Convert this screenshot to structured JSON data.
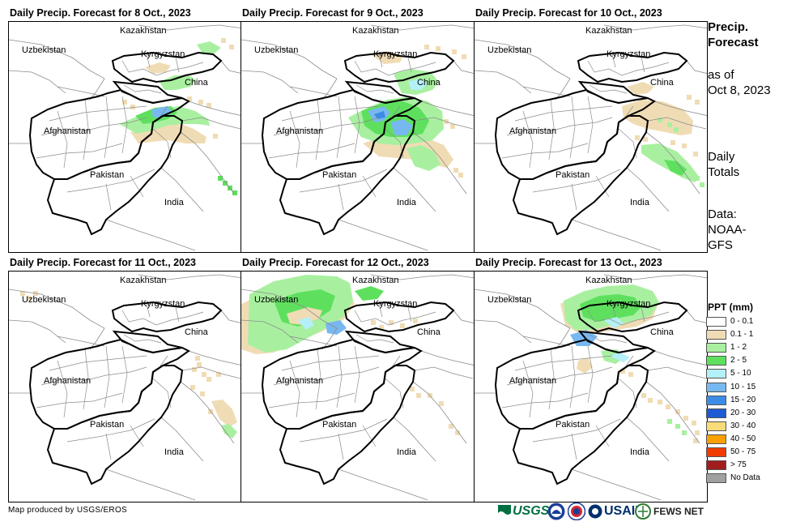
{
  "panels": [
    {
      "title": "Daily Precip. Forecast for 8 Oct., 2023"
    },
    {
      "title": "Daily Precip. Forecast for 9 Oct., 2023"
    },
    {
      "title": "Daily Precip. Forecast for 10 Oct., 2023"
    },
    {
      "title": "Daily Precip. Forecast for 11 Oct., 2023"
    },
    {
      "title": "Daily Precip. Forecast for 12 Oct., 2023"
    },
    {
      "title": "Daily Precip. Forecast for 13 Oct., 2023"
    }
  ],
  "map_labels": {
    "kazakhstan": "Kazakhstan",
    "uzbekistan": "Uzbekistan",
    "kyrgyzstan": "Kyrgyzstan",
    "china": "China",
    "afghanistan": "Afghanistan",
    "pakistan": "Pakistan",
    "india": "India"
  },
  "side": {
    "title_line1": "Precip.",
    "title_line2": "Forecast",
    "asof_line1": "as of",
    "asof_line2": "Oct 8, 2023",
    "totals_line1": "Daily",
    "totals_line2": "Totals",
    "data_line1": "Data:",
    "data_line2": "NOAA-",
    "data_line3": "GFS"
  },
  "legend": {
    "title": "PPT (mm)",
    "items": [
      {
        "label": "0 - 0.1",
        "color": "#ffffff"
      },
      {
        "label": "0.1 - 1",
        "color": "#f0dcb4"
      },
      {
        "label": "1 - 2",
        "color": "#a8f0a0"
      },
      {
        "label": "2 - 5",
        "color": "#5ee05e"
      },
      {
        "label": "5 - 10",
        "color": "#b4f0f8"
      },
      {
        "label": "10 - 15",
        "color": "#78b8f0"
      },
      {
        "label": "15 - 20",
        "color": "#3c8ce6"
      },
      {
        "label": "20 - 30",
        "color": "#1e5ad2"
      },
      {
        "label": "30 - 40",
        "color": "#f8dc78"
      },
      {
        "label": "40 - 50",
        "color": "#f8a000"
      },
      {
        "label": "50 - 75",
        "color": "#f03c00"
      },
      {
        "label": "> 75",
        "color": "#a01e1e"
      },
      {
        "label": "No Data",
        "color": "#a0a0a0"
      }
    ]
  },
  "credit": "Map produced by USGS/EROS",
  "logos": {
    "usgs": "USGS",
    "usaid": "USAID",
    "fewsnet": "FEWS NET"
  },
  "colors": {
    "border": "#000000",
    "admin": "#8c8c8c",
    "tan": "#f0dcb4",
    "lightgreen": "#a8f0a0",
    "green": "#5ee05e",
    "cyan": "#b4f0f8",
    "blue": "#78b8f0",
    "darkblue": "#3c8ce6"
  }
}
